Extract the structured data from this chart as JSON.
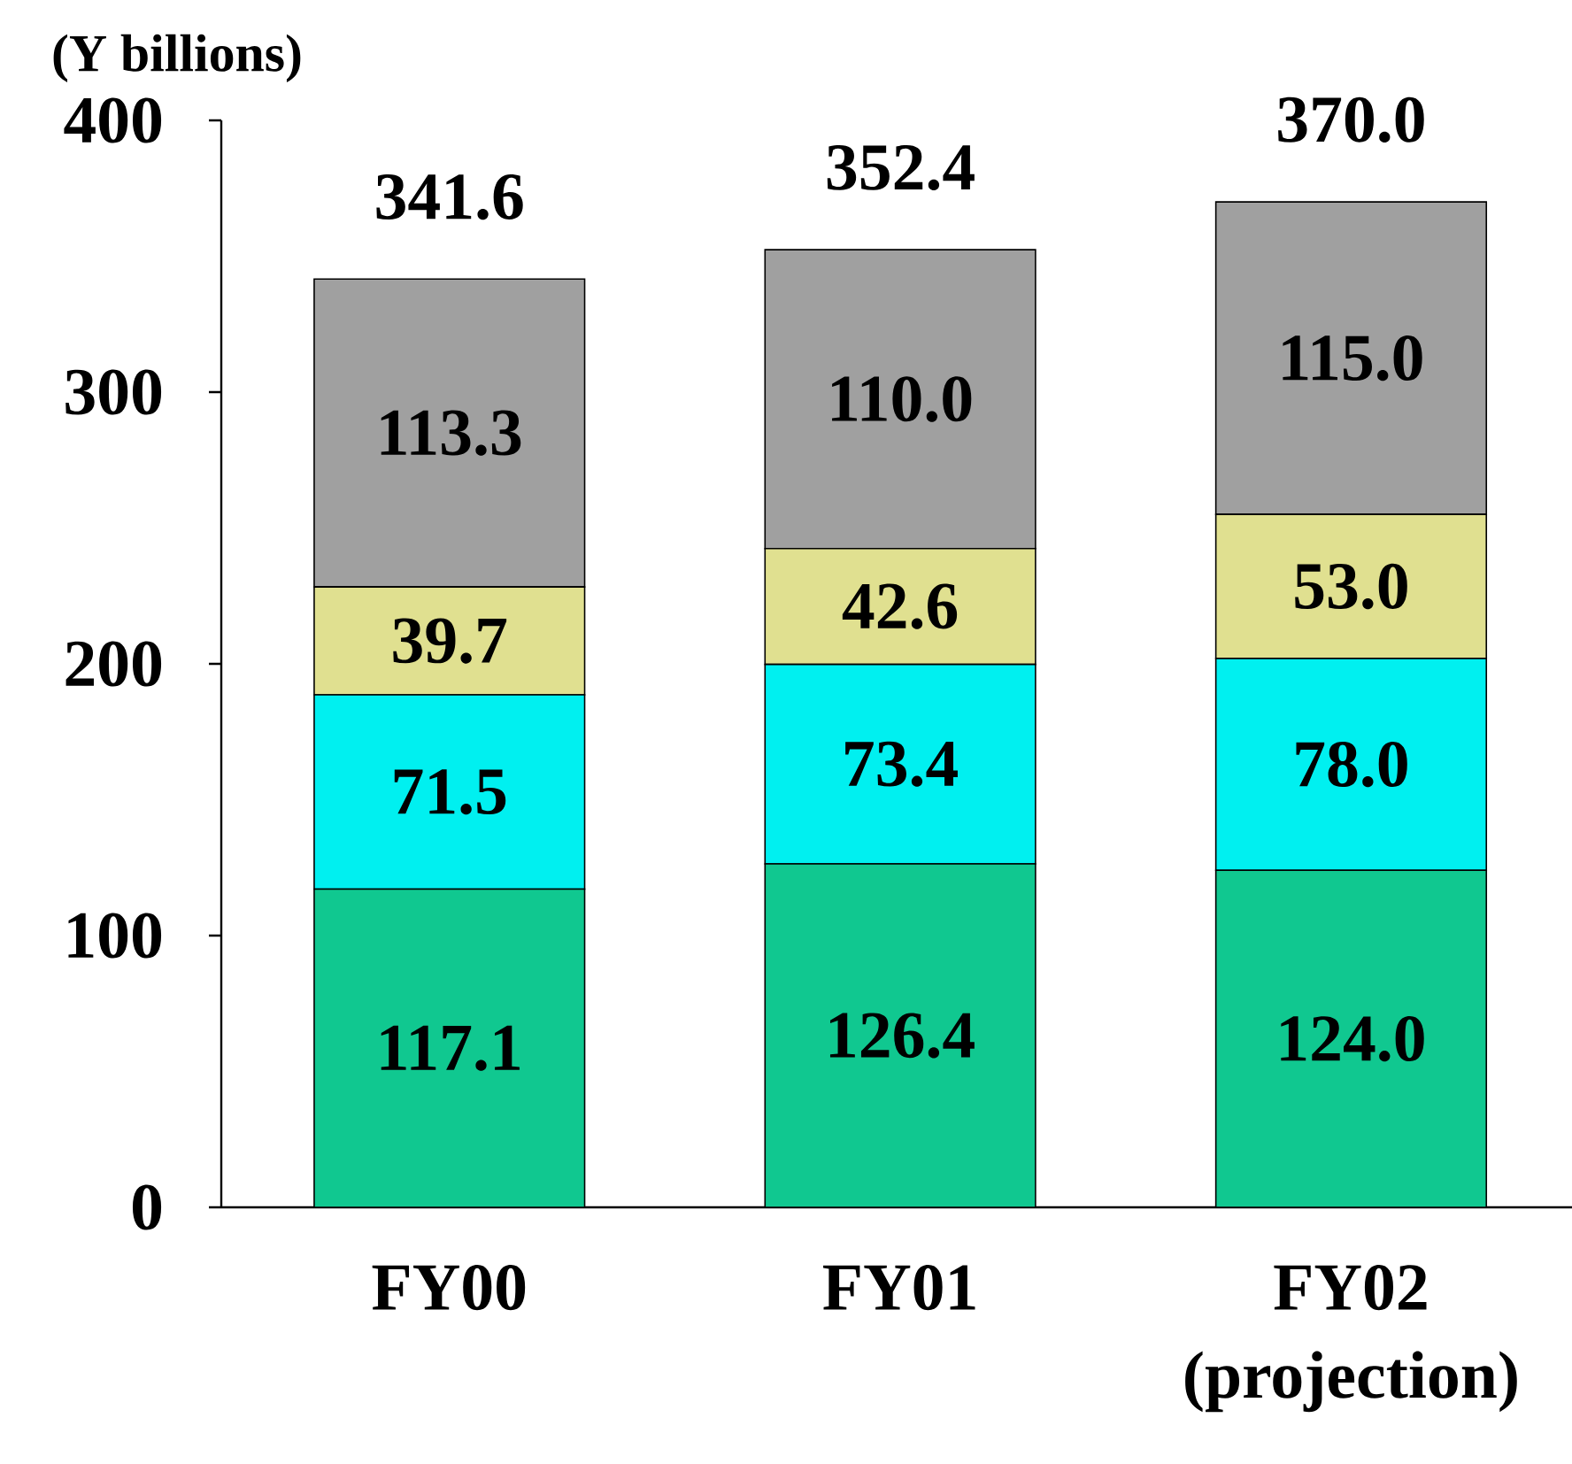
{
  "chart_data": {
    "type": "bar",
    "stacked": true,
    "ylabel": "(Y billions)",
    "categories": [
      "FY00",
      "FY01",
      "FY02 (projection)"
    ],
    "series": [
      {
        "color": "#10c890",
        "values": [
          117.1,
          126.4,
          124.0
        ],
        "value_labels": [
          "117.1",
          "126.4",
          "124.0"
        ]
      },
      {
        "color": "#00f0f0",
        "values": [
          71.5,
          73.4,
          78.0
        ],
        "value_labels": [
          "71.5",
          "73.4",
          "78.0"
        ]
      },
      {
        "color": "#e0e090",
        "values": [
          39.7,
          42.6,
          53.0
        ],
        "value_labels": [
          "39.7",
          "42.6",
          "53.0"
        ]
      },
      {
        "color": "#a0a0a0",
        "values": [
          113.3,
          110.0,
          115.0
        ],
        "value_labels": [
          "113.3",
          "110.0",
          "115.0"
        ]
      }
    ],
    "totals": [
      "341.6",
      "352.4",
      "370.0"
    ],
    "ylim": [
      0,
      400
    ],
    "yticks": [
      0,
      100,
      200,
      300,
      400
    ]
  }
}
